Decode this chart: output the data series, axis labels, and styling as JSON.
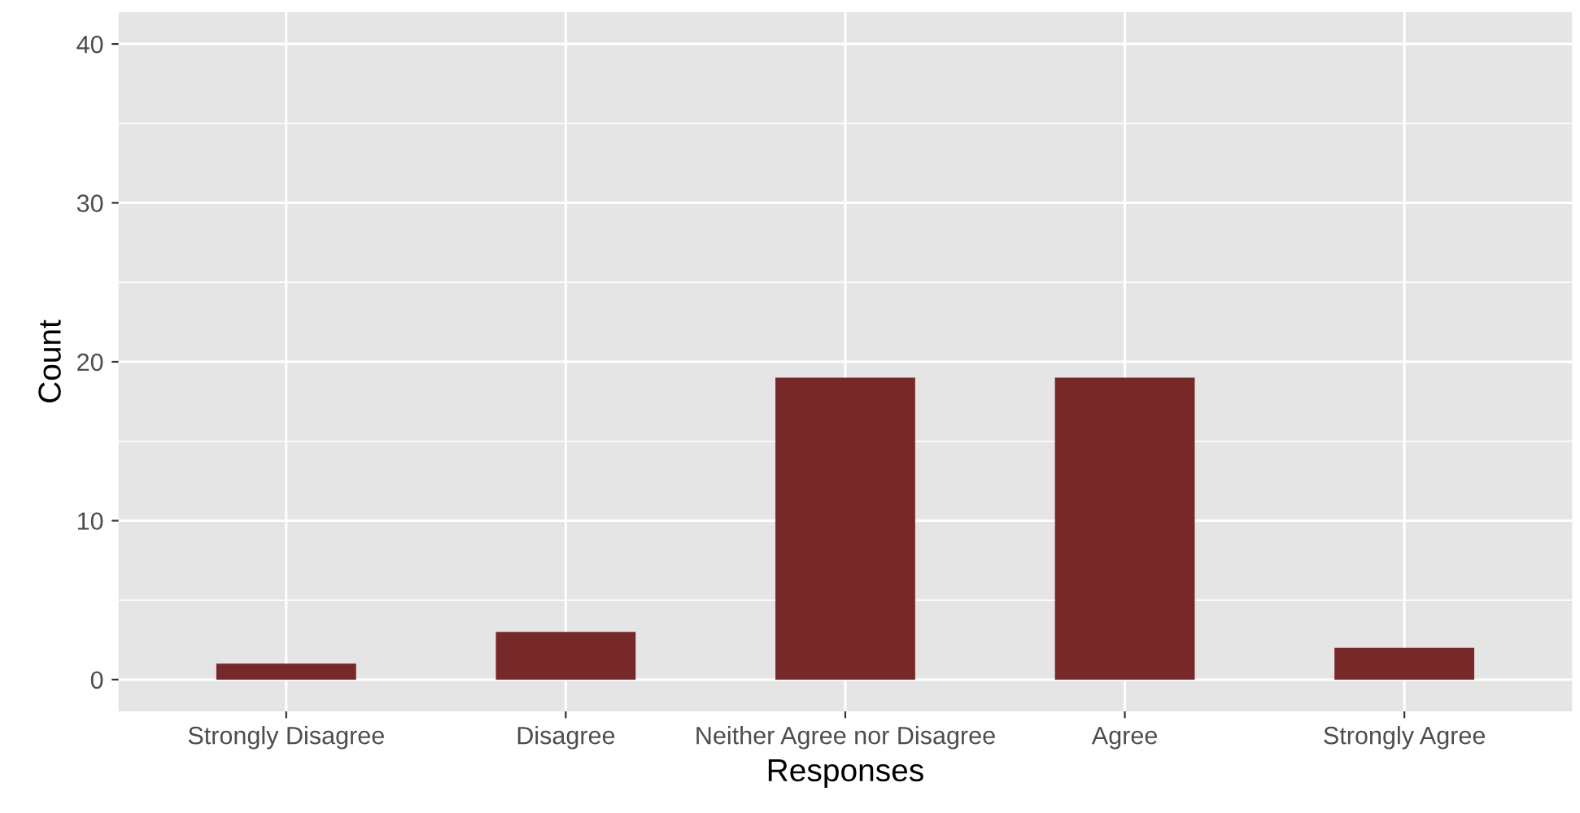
{
  "chart_data": {
    "type": "bar",
    "xlabel": "Responses",
    "ylabel": "Count",
    "categories": [
      "Strongly Disagree",
      "Disagree",
      "Neither Agree nor Disagree",
      "Agree",
      "Strongly Agree"
    ],
    "values": [
      1,
      3,
      19,
      19,
      2
    ],
    "color": "#772829",
    "ylim": [
      -2,
      42
    ],
    "yticks": [
      0,
      10,
      20,
      30,
      40
    ],
    "grid": true
  }
}
